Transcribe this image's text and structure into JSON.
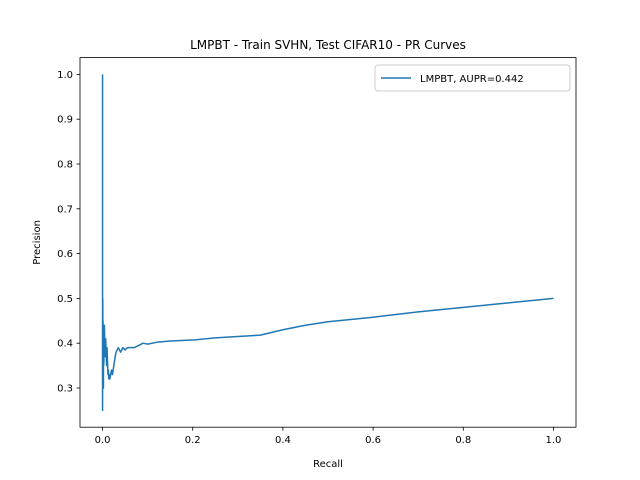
{
  "chart_data": {
    "type": "line",
    "title": "LMPBT - Train SVHN, Test CIFAR10 - PR Curves",
    "xlabel": "Recall",
    "ylabel": "Precision",
    "xlim": [
      -0.05,
      1.05
    ],
    "ylim": [
      0.2125,
      1.0375
    ],
    "xticks": [
      0.0,
      0.2,
      0.4,
      0.6,
      0.8,
      1.0
    ],
    "xtick_labels": [
      "0.0",
      "0.2",
      "0.4",
      "0.6",
      "0.8",
      "1.0"
    ],
    "yticks": [
      0.3,
      0.4,
      0.5,
      0.6,
      0.7,
      0.8,
      0.9,
      1.0
    ],
    "ytick_labels": [
      "0.3",
      "0.4",
      "0.5",
      "0.6",
      "0.7",
      "0.8",
      "0.9",
      "1.0"
    ],
    "grid": false,
    "legend_position": "top-right",
    "series": [
      {
        "name": "LMPBT, AUPR=0.442",
        "color": "#1f77b4",
        "x": [
          0.0,
          0.0,
          0.0005,
          0.001,
          0.001,
          0.0015,
          0.002,
          0.002,
          0.0025,
          0.003,
          0.004,
          0.005,
          0.006,
          0.007,
          0.008,
          0.009,
          0.01,
          0.011,
          0.012,
          0.013,
          0.014,
          0.015,
          0.016,
          0.018,
          0.02,
          0.022,
          0.025,
          0.028,
          0.03,
          0.035,
          0.04,
          0.045,
          0.05,
          0.055,
          0.06,
          0.07,
          0.08,
          0.09,
          0.1,
          0.12,
          0.15,
          0.2,
          0.25,
          0.3,
          0.35,
          0.4,
          0.45,
          0.5,
          0.6,
          0.7,
          0.8,
          0.9,
          1.0
        ],
        "y": [
          1.0,
          0.25,
          0.5,
          0.33,
          0.45,
          0.38,
          0.3,
          0.42,
          0.35,
          0.36,
          0.44,
          0.4,
          0.37,
          0.41,
          0.38,
          0.35,
          0.39,
          0.36,
          0.33,
          0.34,
          0.32,
          0.33,
          0.32,
          0.33,
          0.34,
          0.33,
          0.35,
          0.37,
          0.38,
          0.39,
          0.38,
          0.39,
          0.385,
          0.39,
          0.39,
          0.39,
          0.395,
          0.4,
          0.398,
          0.402,
          0.405,
          0.407,
          0.412,
          0.415,
          0.418,
          0.43,
          0.44,
          0.448,
          0.458,
          0.47,
          0.48,
          0.49,
          0.5
        ]
      }
    ]
  }
}
